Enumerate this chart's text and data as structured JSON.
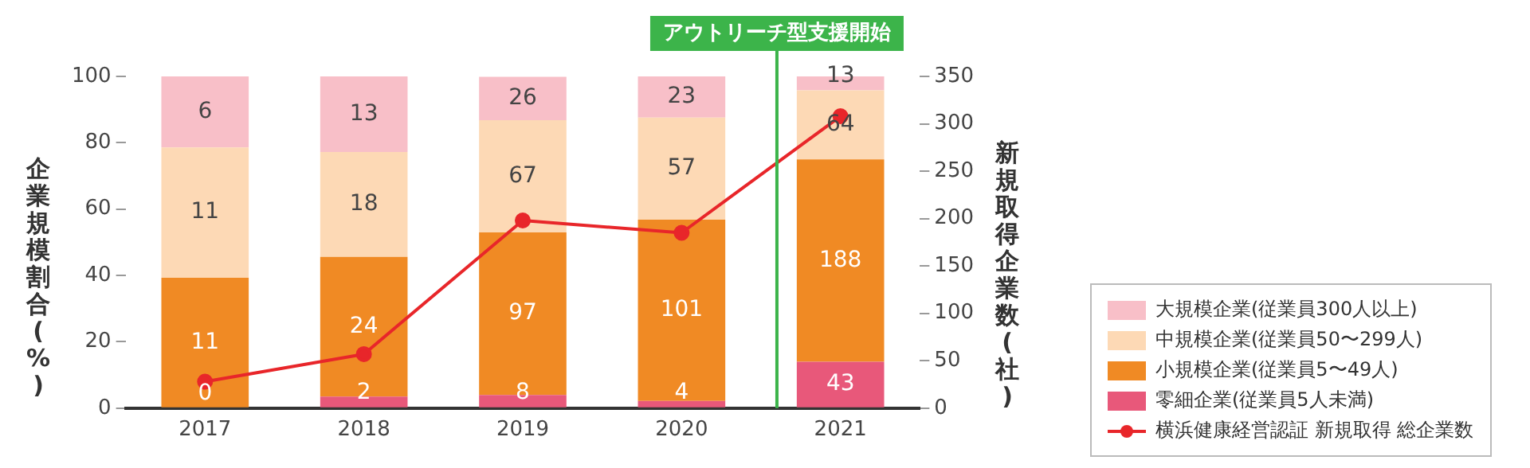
{
  "chart_data": {
    "type": "bar",
    "stacked": true,
    "categories": [
      "2017",
      "2018",
      "2019",
      "2020",
      "2021"
    ],
    "ylabel": "企業規模割合(%)",
    "y2label": "新規取得企業数(社)",
    "series": [
      {
        "name": "零細企業(従業員5人未満)",
        "color": "#e8587a",
        "values": [
          0,
          3.5,
          4.0,
          2.2,
          14.0
        ]
      },
      {
        "name": "小規模企業(従業員5〜49人)",
        "color": "#f08a24",
        "values": [
          39.3,
          42.1,
          49.0,
          54.6,
          61.0
        ]
      },
      {
        "name": "中規模企業(従業員50〜299人)",
        "color": "#fdd9b5",
        "values": [
          39.3,
          31.6,
          33.8,
          30.8,
          20.8
        ]
      },
      {
        "name": "大規模企業(従業員300人以上)",
        "color": "#f8bfc8",
        "values": [
          21.4,
          22.8,
          13.1,
          12.4,
          4.2
        ]
      },
      {
        "name": "横浜健康経営認証 新規取得 総企業数",
        "type": "line",
        "axis": "y2",
        "color": "#e8262a",
        "marker": "circle",
        "values": [
          28,
          57,
          198,
          185,
          308
        ]
      }
    ],
    "annotations": [
      "0",
      "11",
      "11",
      "6",
      "2",
      "24",
      "18",
      "13",
      "8",
      "97",
      "67",
      "26",
      "4",
      "101",
      "57",
      "23",
      "43",
      "188",
      "64",
      "13"
    ],
    "ylim": [
      0,
      100
    ],
    "yticks": [
      0,
      20,
      40,
      60,
      80,
      100
    ],
    "y2lim": [
      0,
      350
    ],
    "y2ticks": [
      0,
      50,
      100,
      150,
      200,
      250,
      300,
      350
    ],
    "ref_lines": [
      {
        "axis": "x",
        "value": "2021",
        "label": "アウトリーチ型支援開始",
        "color": "#3cb44a"
      }
    ],
    "grid": false,
    "legend": "right"
  }
}
